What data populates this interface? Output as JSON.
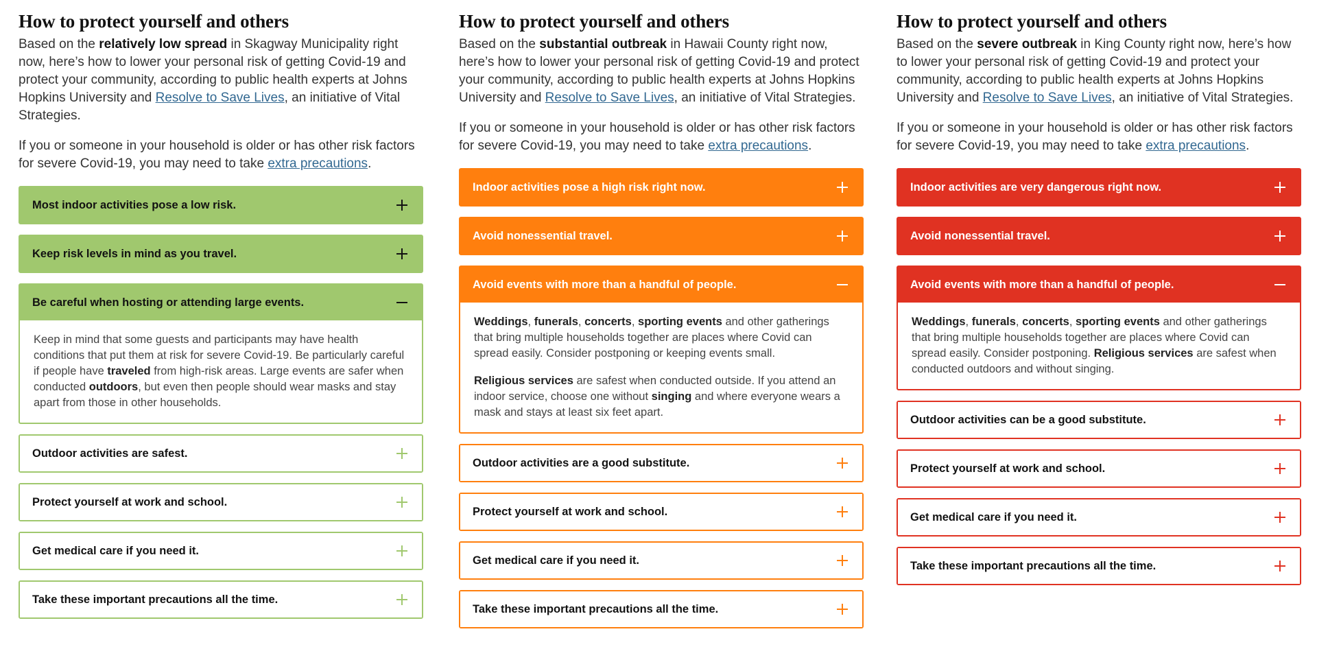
{
  "columns": [
    {
      "title": "How to protect yourself and others",
      "intro": {
        "before": "Based on the ",
        "level": "relatively low spread",
        "after": " in Skagway Municipality right now, here’s how to lower your personal risk of getting Covid-19 and protect your community, according to public health experts at Johns Hopkins University and ",
        "link": "Resolve to Save Lives",
        "end": ", an initiative of Vital Strategies."
      },
      "note": {
        "before": "If you or someone in your household is older or has other risk factors for severe Covid-19, you may need to take ",
        "link": "extra precautions",
        "end": "."
      },
      "color": "#a0c86e",
      "items": [
        {
          "label": "Most indoor activities pose a low risk."
        },
        {
          "label": "Keep risk levels in mind as you travel."
        },
        {
          "label": "Be careful when hosting or attending large events."
        },
        {
          "label": "Outdoor activities are safest."
        },
        {
          "label": "Protect yourself at work and school."
        },
        {
          "label": "Get medical care if you need it."
        },
        {
          "label": "Take these important precautions all the time."
        }
      ],
      "expanded_body": {
        "p1_a": "Keep in mind that some guests and participants may have health conditions that put them at risk for severe Covid-19. Be particularly careful if people have ",
        "p1_b": "traveled",
        "p1_c": " from high-risk areas. Large events are safer when conducted ",
        "p1_d": "outdoors",
        "p1_e": ", but even then people should wear masks and stay apart from those in other households."
      }
    },
    {
      "title": "How to protect yourself and others",
      "intro": {
        "before": "Based on the ",
        "level": "substantial outbreak",
        "after": " in Hawaii County right now, here’s how to lower your personal risk of getting Covid-19 and protect your community, according to public health experts at Johns Hopkins University and ",
        "link": "Resolve to Save Lives",
        "end": ", an initiative of Vital Strategies."
      },
      "note": {
        "before": "If you or someone in your household is older or has other risk factors for severe Covid-19, you may need to take ",
        "link": "extra precautions",
        "end": "."
      },
      "color": "#ff7f0e",
      "items": [
        {
          "label": "Indoor activities pose a high risk right now."
        },
        {
          "label": "Avoid nonessential travel."
        },
        {
          "label": "Avoid events with more than a handful of people."
        },
        {
          "label": "Outdoor activities are a good substitute."
        },
        {
          "label": "Protect yourself at work and school."
        },
        {
          "label": "Get medical care if you need it."
        },
        {
          "label": "Take these important precautions all the time."
        }
      ],
      "expanded_body": {
        "w1": "Weddings",
        "s1": ", ",
        "w2": "funerals",
        "s2": ", ",
        "w3": "concerts",
        "s3": ", ",
        "w4": "sporting events",
        "p1_end": " and other gatherings that bring multiple households together are places where Covid can spread easily. Consider postponing or keeping events small.",
        "p2_a": "Religious services",
        "p2_b": " are safest when conducted outside. If you attend an indoor service, choose one without ",
        "p2_c": "singing",
        "p2_d": " and where everyone wears a mask and stays at least six feet apart."
      }
    },
    {
      "title": "How to protect yourself and others",
      "intro": {
        "before": "Based on the ",
        "level": "severe outbreak",
        "after": " in King County right now, here’s how to lower your personal risk of getting Covid-19 and protect your community, according to public health experts at Johns Hopkins University and ",
        "link": "Resolve to Save Lives",
        "end": ", an initiative of Vital Strategies."
      },
      "note": {
        "before": "If you or someone in your household is older or has other risk factors for severe Covid-19, you may need to take ",
        "link": "extra precautions",
        "end": "."
      },
      "color": "#e03222",
      "items": [
        {
          "label": "Indoor activities are very dangerous right now."
        },
        {
          "label": "Avoid nonessential travel."
        },
        {
          "label": "Avoid events with more than a handful of people."
        },
        {
          "label": "Outdoor activities can be a good substitute."
        },
        {
          "label": "Protect yourself at work and school."
        },
        {
          "label": "Get medical care if you need it."
        },
        {
          "label": "Take these important precautions all the time."
        }
      ],
      "expanded_body": {
        "w1": "Weddings",
        "s1": ", ",
        "w2": "funerals",
        "s2": ", ",
        "w3": "concerts",
        "s3": ", ",
        "w4": "sporting events",
        "p1_mid": " and other gatherings that bring multiple households together are places where Covid can spread easily. Consider postponing. ",
        "p1_b": "Religious services",
        "p1_end": " are safest when conducted outdoors and without singing."
      }
    }
  ]
}
